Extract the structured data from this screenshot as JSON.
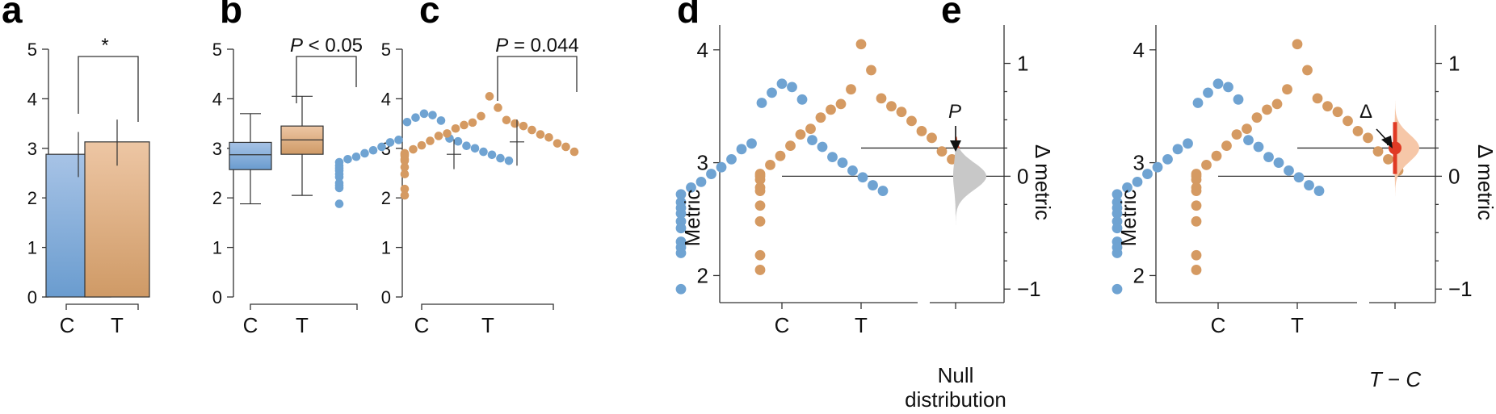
{
  "panels": {
    "a": {
      "label": "a",
      "sig": "*"
    },
    "b": {
      "label": "b",
      "p_i": "P",
      "p_rest": " < 0.05"
    },
    "c": {
      "label": "c",
      "p_i": "P",
      "p_rest": " = 0.044"
    },
    "d": {
      "label": "d",
      "ylabel": "Metric",
      "ylabel2": "Δ metric",
      "null1": "Null",
      "null2": "distribution",
      "p_marker": "P"
    },
    "e": {
      "label": "e",
      "ylabel": "Metric",
      "ylabel2": "Δ metric",
      "delta_marker": "Δ",
      "diff_t": "T",
      "diff_sep": " − ",
      "diff_c": "C"
    }
  },
  "chart_data": [
    {
      "type": "bar",
      "panel": "a",
      "categories": [
        "C",
        "T"
      ],
      "values": [
        2.88,
        3.13
      ],
      "error_low": [
        2.42,
        2.65
      ],
      "error_high": [
        3.33,
        3.58
      ],
      "yticks": [
        "0",
        "1",
        "2",
        "3",
        "4",
        "5"
      ],
      "ylim": [
        0,
        5
      ],
      "annotation": "*",
      "colors": [
        "#7aa6d6",
        "#d7a57a"
      ]
    },
    {
      "type": "box",
      "panel": "b",
      "categories": [
        "C",
        "T"
      ],
      "boxes": [
        {
          "min": 1.88,
          "q1": 2.57,
          "median": 2.87,
          "q3": 3.12,
          "max": 3.7
        },
        {
          "min": 2.05,
          "q1": 2.88,
          "median": 3.17,
          "q3": 3.45,
          "max": 4.05
        }
      ],
      "yticks": [
        "0",
        "1",
        "2",
        "3",
        "4",
        "5"
      ],
      "ylim": [
        0,
        5
      ],
      "annotation": "P < 0.05",
      "colors": [
        "#7aa6d6",
        "#d7a57a"
      ]
    },
    {
      "type": "scatter",
      "panel": "c",
      "categories": [
        "C",
        "T"
      ],
      "series": [
        {
          "name": "C",
          "color": "#6fa3d2",
          "mean": 2.88,
          "sd_low": 2.58,
          "sd_high": 3.18,
          "values": [
            3.7,
            3.67,
            3.62,
            3.56,
            3.53,
            3.2,
            3.17,
            3.14,
            3.12,
            3.05,
            3.03,
            3.0,
            2.96,
            2.93,
            2.9,
            2.87,
            2.83,
            2.8,
            2.78,
            2.75,
            2.72,
            2.65,
            2.6,
            2.55,
            2.48,
            2.42,
            2.3,
            2.25,
            2.2,
            1.88
          ]
        },
        {
          "name": "T",
          "color": "#d59a62",
          "mean": 3.13,
          "sd_low": 2.65,
          "sd_high": 3.58,
          "values": [
            4.05,
            3.82,
            3.65,
            3.57,
            3.52,
            3.5,
            3.47,
            3.45,
            3.4,
            3.37,
            3.3,
            3.28,
            3.25,
            3.22,
            3.15,
            3.1,
            3.06,
            3.03,
            2.98,
            2.93,
            2.9,
            2.88,
            2.85,
            2.78,
            2.75,
            2.62,
            2.48,
            2.18,
            2.05
          ]
        }
      ],
      "yticks": [
        "0",
        "1",
        "2",
        "3",
        "4",
        "5"
      ],
      "ylim": [
        0,
        5
      ],
      "annotation": "P = 0.044"
    },
    {
      "type": "scatter",
      "panel": "d",
      "categories": [
        "C",
        "T",
        "Null distribution"
      ],
      "ylabel": "Metric",
      "ylabel_right": "Δ metric",
      "yticks": [
        "2",
        "3",
        "4"
      ],
      "ylim": [
        1.76,
        4.22
      ],
      "yticks_right": [
        "−1",
        "0",
        "1"
      ],
      "ref_c": 2.88,
      "ref_t": 3.13,
      "null_distribution": {
        "center": 0,
        "sd": 0.12,
        "tail_above": 0.25,
        "color": "#c8c8c8",
        "tail_color": "#d84a2a"
      },
      "annotation": "P"
    },
    {
      "type": "scatter",
      "panel": "e",
      "categories": [
        "C",
        "T",
        "T − C"
      ],
      "ylabel": "Metric",
      "ylabel_right": "Δ metric",
      "yticks": [
        "2",
        "3",
        "4"
      ],
      "ylim": [
        1.76,
        4.22
      ],
      "yticks_right": [
        "−1",
        "0",
        "1"
      ],
      "ref_c": 2.88,
      "ref_t": 3.13,
      "effect": {
        "delta": 0.25,
        "ci_low": 0.02,
        "ci_high": 0.48,
        "color": "#e03a24",
        "dist_color": "#f6c7a8"
      },
      "annotation": "Δ"
    }
  ]
}
